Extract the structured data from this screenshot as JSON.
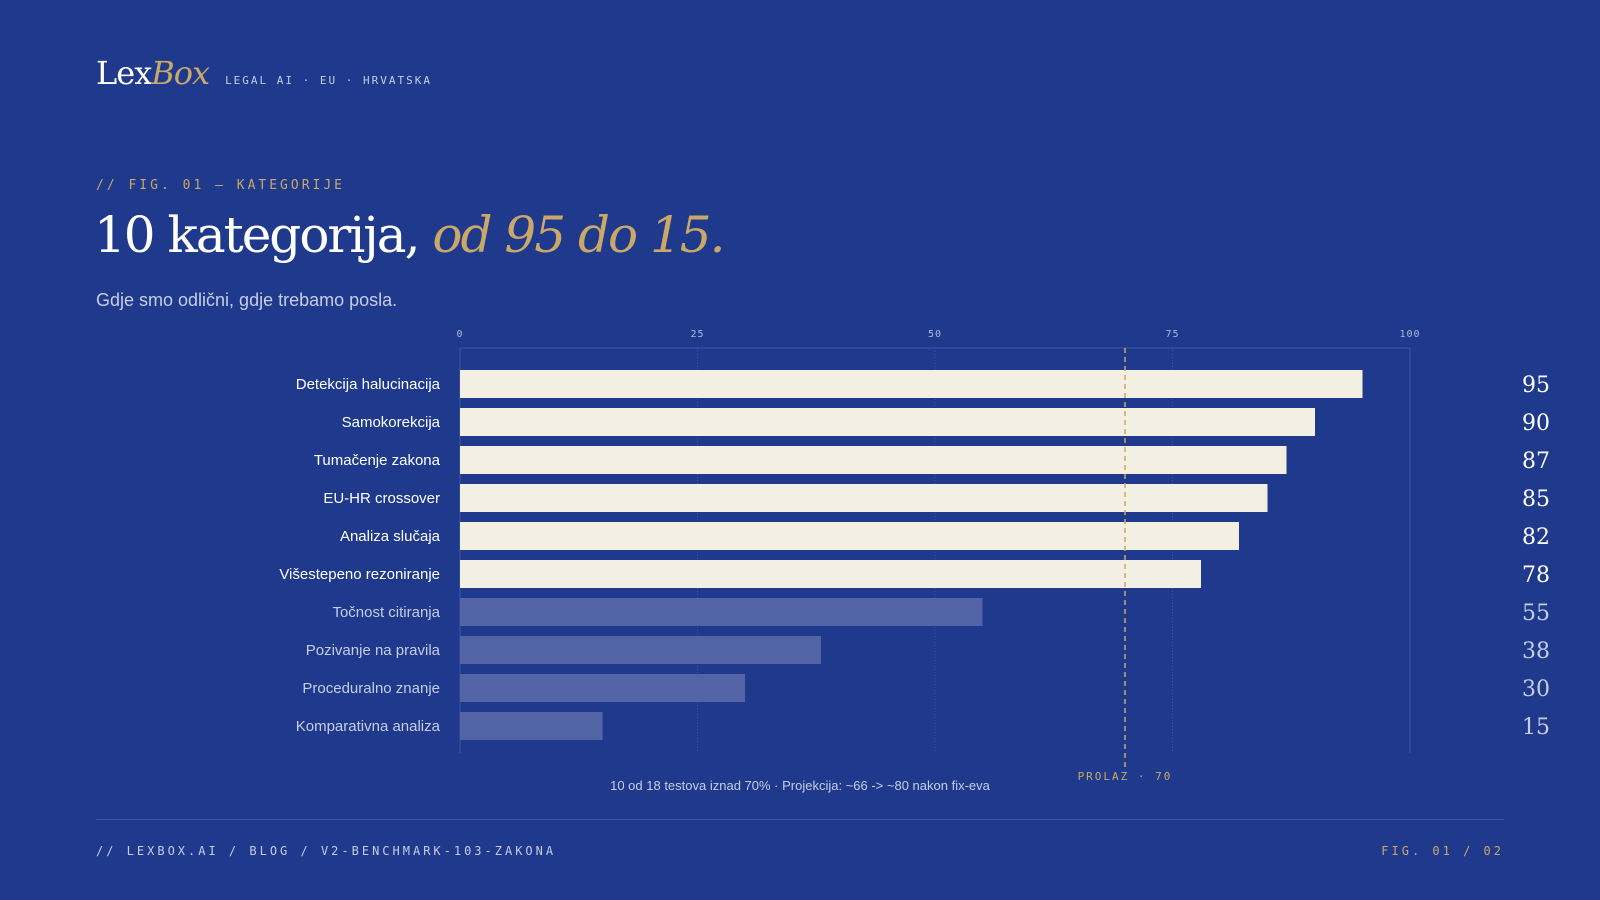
{
  "brand": {
    "logo_lex": "Lex",
    "logo_box": "Box",
    "tagline": "LEGAL AI · EU · HRVATSKA"
  },
  "figure": {
    "eyebrow": "// FIG. 01 — KATEGORIJE",
    "headline_main": "10 kategorija, ",
    "headline_accent": "od 95 do 15.",
    "subtitle": "Gdje smo odlični, gdje trebamo posla."
  },
  "chart_data": {
    "type": "bar",
    "orientation": "horizontal",
    "categories": [
      "Detekcija halucinacija",
      "Samokorekcija",
      "Tumačenje zakona",
      "EU-HR crossover",
      "Analiza slučaja",
      "Višestepeno rezoniranje",
      "Točnost citiranja",
      "Pozivanje na pravila",
      "Proceduralno znanje",
      "Komparativna analiza"
    ],
    "values": [
      95,
      90,
      87,
      85,
      82,
      78,
      55,
      38,
      30,
      15
    ],
    "xlim": [
      0,
      100
    ],
    "xticks": [
      0,
      25,
      50,
      75,
      100
    ],
    "threshold": {
      "value": 70,
      "label": "PROLAZ · 70"
    },
    "note": "10 od 18 testova iznad 70% · Projekcija: ~66 -> ~80 nakon fix-eva",
    "grid": true,
    "colors": {
      "above": "#f4efe3",
      "below": "#5264a6",
      "threshold": "#c9a868",
      "label_above": "#ffffff",
      "label_below": "#c7cde6",
      "grid": "#3a56a4"
    }
  },
  "footer": {
    "path": "// LEXBOX.AI / BLOG / V2-BENCHMARK-103-ZAKONA",
    "fig": "FIG. 01 / 02"
  }
}
